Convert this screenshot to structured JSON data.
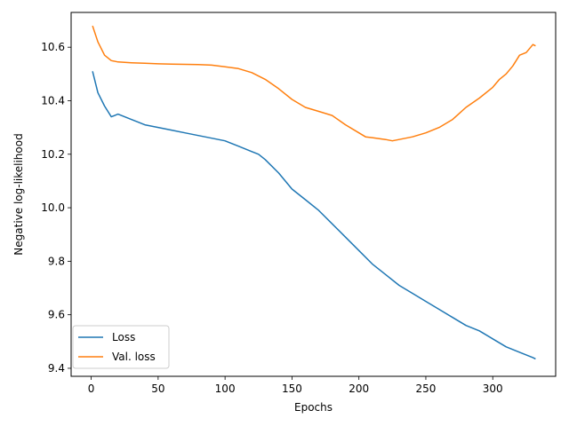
{
  "chart_data": {
    "type": "line",
    "title": "",
    "xlabel": "Epochs",
    "ylabel": "Negative log-likelihood",
    "xlim": [
      -15,
      347
    ],
    "ylim": [
      9.37,
      10.73
    ],
    "xticks": [
      0,
      50,
      100,
      150,
      200,
      250,
      300
    ],
    "yticks": [
      9.4,
      9.6,
      9.8,
      10.0,
      10.2,
      10.4,
      10.6
    ],
    "ytick_labels": [
      "9.4",
      "9.6",
      "9.8",
      "10.0",
      "10.2",
      "10.4",
      "10.6"
    ],
    "grid": false,
    "legend_position": "lower-left",
    "series": [
      {
        "name": "Loss",
        "color": "#1f77b4",
        "x": [
          1,
          5,
          10,
          15,
          20,
          25,
          30,
          35,
          40,
          50,
          60,
          70,
          80,
          90,
          100,
          110,
          120,
          125,
          130,
          140,
          150,
          160,
          170,
          180,
          190,
          200,
          210,
          220,
          230,
          240,
          250,
          260,
          270,
          280,
          290,
          300,
          310,
          320,
          325,
          330,
          332
        ],
        "y": [
          10.51,
          10.43,
          10.38,
          10.34,
          10.35,
          10.34,
          10.33,
          10.32,
          10.31,
          10.3,
          10.29,
          10.28,
          10.27,
          10.26,
          10.25,
          10.23,
          10.21,
          10.2,
          10.18,
          10.13,
          10.07,
          10.03,
          9.99,
          9.94,
          9.89,
          9.84,
          9.79,
          9.75,
          9.71,
          9.68,
          9.65,
          9.62,
          9.59,
          9.56,
          9.54,
          9.51,
          9.48,
          9.46,
          9.45,
          9.44,
          9.435
        ]
      },
      {
        "name": "Val. loss",
        "color": "#ff7f0e",
        "x": [
          1,
          5,
          10,
          15,
          20,
          30,
          40,
          50,
          60,
          70,
          80,
          90,
          100,
          110,
          120,
          130,
          140,
          150,
          160,
          170,
          180,
          190,
          200,
          205,
          210,
          220,
          225,
          230,
          240,
          250,
          260,
          270,
          280,
          290,
          300,
          305,
          310,
          315,
          320,
          325,
          330,
          332
        ],
        "y": [
          10.68,
          10.62,
          10.57,
          10.55,
          10.545,
          10.542,
          10.54,
          10.538,
          10.537,
          10.536,
          10.535,
          10.533,
          10.527,
          10.52,
          10.505,
          10.48,
          10.445,
          10.405,
          10.375,
          10.36,
          10.345,
          10.31,
          10.28,
          10.265,
          10.262,
          10.255,
          10.25,
          10.255,
          10.265,
          10.28,
          10.3,
          10.33,
          10.375,
          10.41,
          10.45,
          10.48,
          10.5,
          10.53,
          10.57,
          10.58,
          10.61,
          10.605
        ]
      }
    ]
  }
}
